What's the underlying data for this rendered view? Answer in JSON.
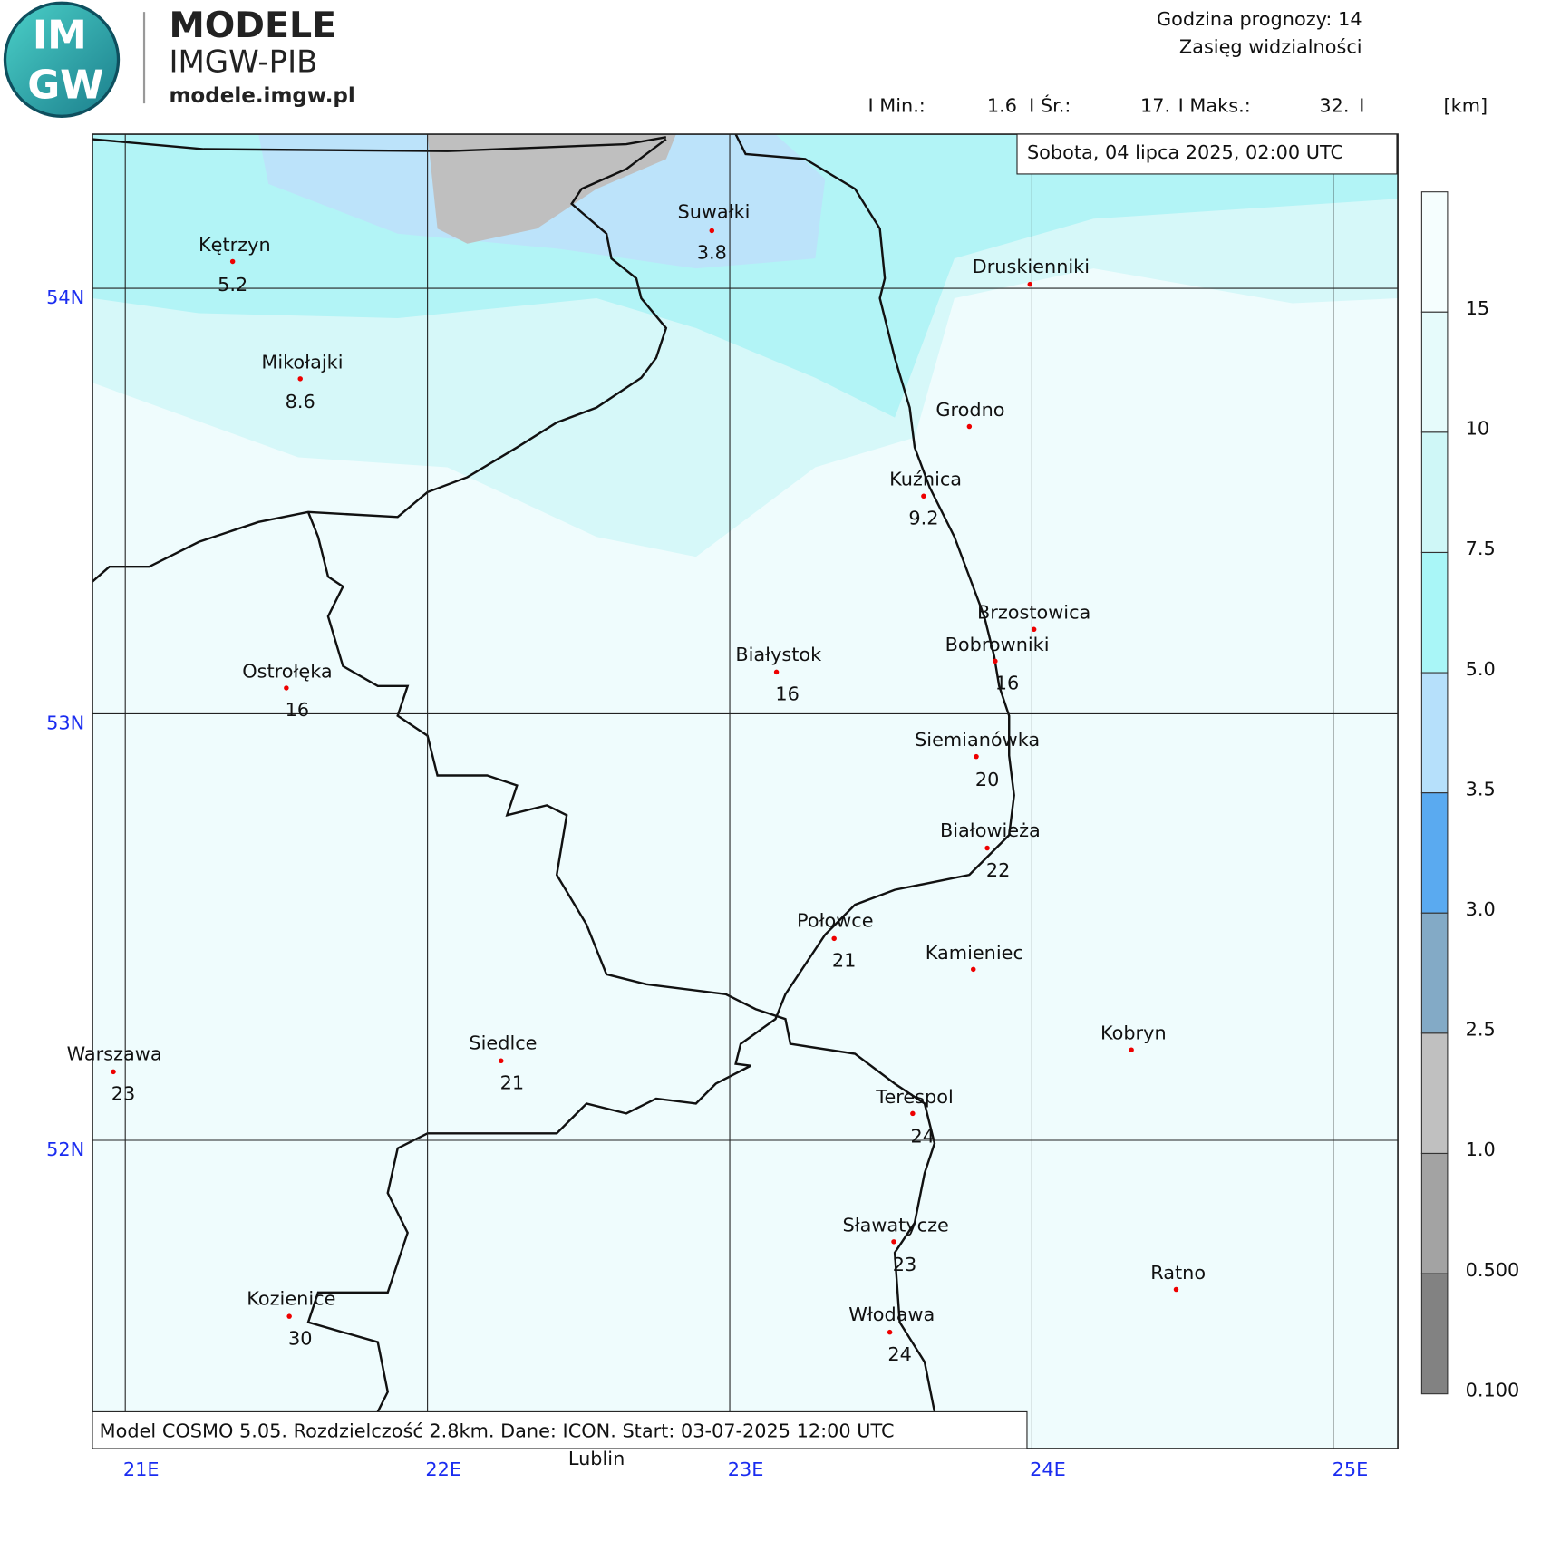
{
  "header": {
    "logo": [
      "IM",
      "GW"
    ],
    "title": "MODELE",
    "subtitle": "IMGW-PIB",
    "url": "modele.imgw.pl"
  },
  "forecast": {
    "hour": "Godzina prognozy: 14",
    "field": "Zasięg widzialności"
  },
  "stats": {
    "min_label": "I Min.:",
    "min": "1.6",
    "mean_label": "I Śr.:",
    "mean": "17.",
    "max_label": "I Maks.:",
    "max": "32.",
    "sep": "I",
    "unit": "[km]"
  },
  "date": "Sobota, 04 lipca 2025, 02:00 UTC",
  "footer": "Model COSMO 5.05. Rozdzielczość 2.8km. Dane: ICON. Start: 03-07-2025 12:00 UTC",
  "lat_labels": [
    "54N",
    "53N",
    "52N"
  ],
  "lon_labels": [
    "21E",
    "22E",
    "23E",
    "24E",
    "25E"
  ],
  "colorbar": [
    "15",
    "10",
    "7.5",
    "5.0",
    "3.5",
    "3.0",
    "2.5",
    "1.0",
    "0.500",
    "0.100"
  ],
  "cities": [
    {
      "name": "Kętrzyn",
      "value": 5.2
    },
    {
      "name": "Suwałki",
      "value": 3.8
    },
    {
      "name": "Druskienniki"
    },
    {
      "name": "Mikołajki",
      "value": 8.6
    },
    {
      "name": "Grodno"
    },
    {
      "name": "Kuźnica",
      "value": 9.2
    },
    {
      "name": "Brzostowica"
    },
    {
      "name": "Bobrowniki",
      "value": 16
    },
    {
      "name": "Białystok",
      "value": 16
    },
    {
      "name": "Ostrołęka",
      "value": 16
    },
    {
      "name": "Siemianówka",
      "value": 20
    },
    {
      "name": "Białowieża",
      "value": 22
    },
    {
      "name": "Połowce",
      "value": 21
    },
    {
      "name": "Kamieniec"
    },
    {
      "name": "Kobryn"
    },
    {
      "name": "Warszawa",
      "value": 23
    },
    {
      "name": "Siedlce",
      "value": 21
    },
    {
      "name": "Terespol",
      "value": 24
    },
    {
      "name": "Sławatycze",
      "value": 23
    },
    {
      "name": "Ratno"
    },
    {
      "name": "Kozienice",
      "value": 30
    },
    {
      "name": "Włodawa",
      "value": 24
    },
    {
      "name": "Lublin"
    }
  ]
}
